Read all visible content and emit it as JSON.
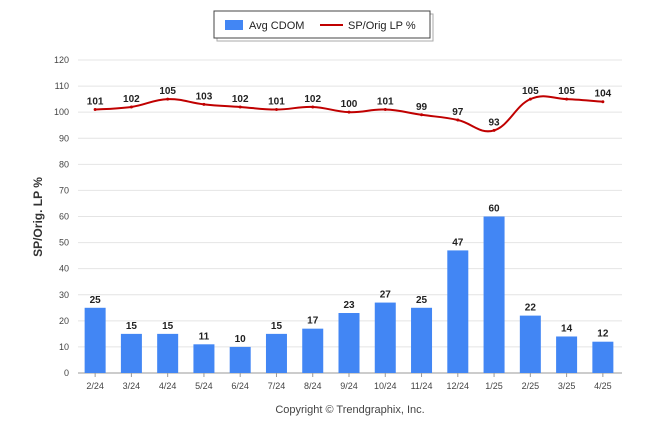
{
  "chart_data": {
    "type": "bar",
    "categories": [
      "2/24",
      "3/24",
      "4/24",
      "5/24",
      "6/24",
      "7/24",
      "8/24",
      "9/24",
      "10/24",
      "11/24",
      "12/24",
      "1/25",
      "2/25",
      "3/25",
      "4/25"
    ],
    "series": [
      {
        "name": "Avg CDOM",
        "kind": "bar",
        "color": "#4286f4",
        "values": [
          25,
          15,
          15,
          11,
          10,
          15,
          17,
          23,
          27,
          25,
          47,
          60,
          22,
          14,
          12
        ]
      },
      {
        "name": "SP/Orig LP %",
        "kind": "line",
        "color": "#c00000",
        "values": [
          101,
          102,
          105,
          103,
          102,
          101,
          102,
          100,
          101,
          99,
          97,
          93,
          105,
          105,
          104
        ]
      }
    ],
    "ylabel": "SP/Orig. LP %",
    "xlabel": "",
    "ylim": [
      0,
      120
    ],
    "yticks": [
      0,
      10,
      20,
      30,
      40,
      50,
      60,
      70,
      80,
      90,
      100,
      110,
      120
    ],
    "grid": true,
    "legend_position": "top-center",
    "credit": "Copyright © Trendgraphix, Inc."
  }
}
